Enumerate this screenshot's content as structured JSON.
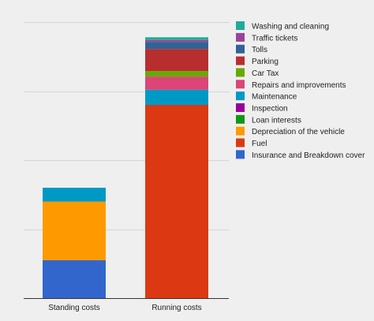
{
  "chart_data": {
    "type": "bar",
    "stacked": true,
    "categories": [
      "Standing costs",
      "Running costs"
    ],
    "ylim": [
      0,
      4000
    ],
    "grid": true,
    "legend_position": "right",
    "series": [
      {
        "name": "Insurance and Breakdown cover",
        "color": "#3366cc",
        "values": [
          550,
          0
        ]
      },
      {
        "name": "Fuel",
        "color": "#dc3912",
        "values": [
          0,
          2800
        ]
      },
      {
        "name": "Depreciation of the vehicle",
        "color": "#ff9900",
        "values": [
          850,
          0
        ]
      },
      {
        "name": "Loan interests",
        "color": "#109618",
        "values": [
          0,
          0
        ]
      },
      {
        "name": "Inspection",
        "color": "#990099",
        "values": [
          0,
          0
        ]
      },
      {
        "name": "Maintenance",
        "color": "#0099c6",
        "values": [
          200,
          220
        ]
      },
      {
        "name": "Repairs and improvements",
        "color": "#dd4477",
        "values": [
          0,
          190
        ]
      },
      {
        "name": "Car Tax",
        "color": "#66aa00",
        "values": [
          0,
          80
        ]
      },
      {
        "name": "Parking",
        "color": "#b82e2e",
        "values": [
          0,
          320
        ]
      },
      {
        "name": "Tolls",
        "color": "#316395",
        "values": [
          0,
          100
        ]
      },
      {
        "name": "Traffic tickets",
        "color": "#994499",
        "values": [
          0,
          30
        ]
      },
      {
        "name": "Washing and cleaning",
        "color": "#22aa99",
        "values": [
          0,
          40
        ]
      }
    ],
    "legend_order": [
      "Washing and cleaning",
      "Traffic tickets",
      "Tolls",
      "Parking",
      "Car Tax",
      "Repairs and improvements",
      "Maintenance",
      "Inspection",
      "Loan interests",
      "Depreciation of the vehicle",
      "Fuel",
      "Insurance and Breakdown cover"
    ]
  }
}
